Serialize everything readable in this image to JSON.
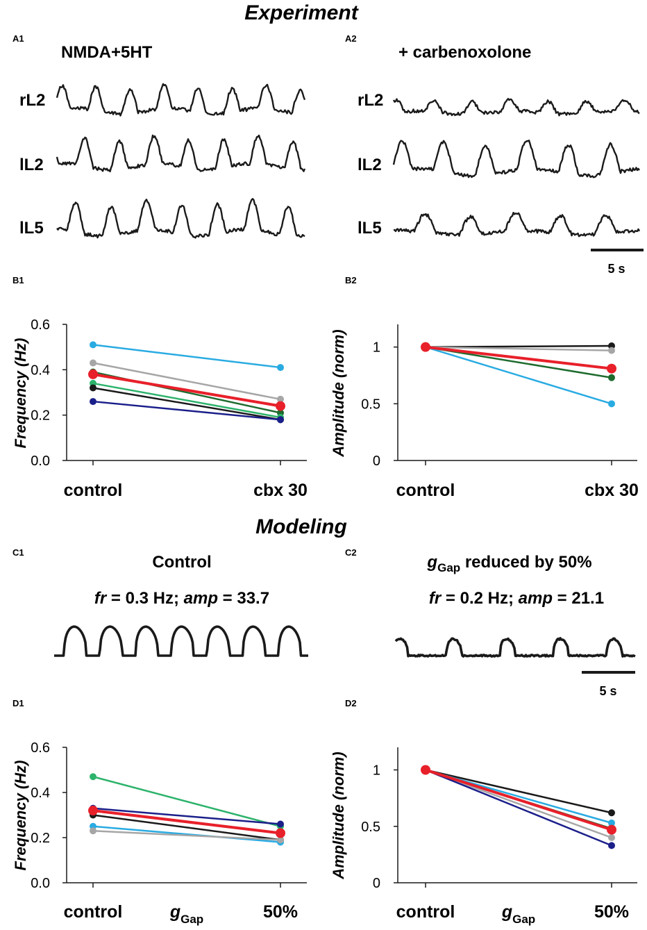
{
  "figure": {
    "experiment_title": "Experiment",
    "modeling_title": "Modeling"
  },
  "panel_a": {
    "a1": {
      "label": "A1",
      "title": "NMDA+5HT"
    },
    "a2": {
      "label": "A2",
      "title": "+ carbenoxolone"
    },
    "trace_labels": [
      "rL2",
      "lL2",
      "lL5"
    ],
    "scale_bar": "5 s"
  },
  "panel_c": {
    "c1": {
      "label": "C1",
      "title": "Control",
      "fr_label": "fr",
      "fr_value": " = 0.3 Hz; ",
      "amp_label": "amp",
      "amp_value": " =  33.7"
    },
    "c2": {
      "label": "C2",
      "title_symbol": "g",
      "title_sub": "Gap",
      "title_rest": " reduced by 50%",
      "fr_label": "fr",
      "fr_value": " = 0.2 Hz; ",
      "amp_label": "amp",
      "amp_value": " =  21.1"
    },
    "scale_bar": "5 s"
  },
  "colors": {
    "cyan": "#29abe2",
    "gray": "#a6a6a6",
    "darkgreen": "#1e6b2e",
    "green": "#2db36b",
    "black": "#1a1a1a",
    "navy": "#1b1f8a",
    "red": "#e8202a"
  },
  "chart_data": [
    {
      "id": "B1",
      "label": "B1",
      "type": "line",
      "categories": [
        "control",
        "cbx 30"
      ],
      "ylabel": "Frequency (Hz)",
      "ylim": [
        0,
        0.6
      ],
      "yticks": [
        0.0,
        0.2,
        0.4,
        0.6
      ],
      "ytick_labels": [
        "0.0",
        "0.2",
        "0.4",
        "0.6"
      ],
      "xlabel_symbol": "",
      "xlabel_sub": "",
      "series": [
        {
          "name": "cyan",
          "values": [
            0.51,
            0.41
          ]
        },
        {
          "name": "gray",
          "values": [
            0.43,
            0.27
          ]
        },
        {
          "name": "darkgreen",
          "values": [
            0.39,
            0.21
          ]
        },
        {
          "name": "green",
          "values": [
            0.34,
            0.19
          ]
        },
        {
          "name": "black",
          "values": [
            0.32,
            0.18
          ]
        },
        {
          "name": "navy",
          "values": [
            0.26,
            0.18
          ]
        },
        {
          "name": "red",
          "values": [
            0.38,
            0.24
          ],
          "mean": true
        }
      ]
    },
    {
      "id": "B2",
      "label": "B2",
      "type": "line",
      "categories": [
        "control",
        "cbx 30"
      ],
      "ylabel": "Amplitude (norm)",
      "ylim": [
        0,
        1.2
      ],
      "yticks": [
        0,
        0.5,
        1
      ],
      "ytick_labels": [
        "0",
        "0.5",
        "1"
      ],
      "xlabel_symbol": "",
      "xlabel_sub": "",
      "series": [
        {
          "name": "black",
          "values": [
            1.0,
            1.01
          ]
        },
        {
          "name": "gray",
          "values": [
            1.0,
            0.97
          ]
        },
        {
          "name": "darkgreen",
          "values": [
            1.0,
            0.73
          ]
        },
        {
          "name": "cyan",
          "values": [
            1.0,
            0.5
          ]
        },
        {
          "name": "red",
          "values": [
            1.0,
            0.81
          ],
          "mean": true
        }
      ]
    },
    {
      "id": "D1",
      "label": "D1",
      "type": "line",
      "categories": [
        "control",
        "50%"
      ],
      "ylabel": "Frequency (Hz)",
      "ylim": [
        0,
        0.6
      ],
      "yticks": [
        0.0,
        0.2,
        0.4,
        0.6
      ],
      "ytick_labels": [
        "0.0",
        "0.2",
        "0.4",
        "0.6"
      ],
      "xlabel_symbol": "g",
      "xlabel_sub": "Gap",
      "series": [
        {
          "name": "green",
          "values": [
            0.47,
            0.25
          ]
        },
        {
          "name": "navy",
          "values": [
            0.33,
            0.26
          ]
        },
        {
          "name": "black",
          "values": [
            0.3,
            0.19
          ]
        },
        {
          "name": "cyan",
          "values": [
            0.25,
            0.18
          ]
        },
        {
          "name": "gray",
          "values": [
            0.23,
            0.19
          ]
        },
        {
          "name": "red",
          "values": [
            0.32,
            0.22
          ],
          "mean": true
        }
      ]
    },
    {
      "id": "D2",
      "label": "D2",
      "type": "line",
      "categories": [
        "control",
        "50%"
      ],
      "ylabel": "Amplitude (norm)",
      "ylim": [
        0,
        1.2
      ],
      "yticks": [
        0,
        0.5,
        1
      ],
      "ytick_labels": [
        "0",
        "0.5",
        "1"
      ],
      "xlabel_symbol": "g",
      "xlabel_sub": "Gap",
      "series": [
        {
          "name": "black",
          "values": [
            1.0,
            0.62
          ]
        },
        {
          "name": "cyan",
          "values": [
            1.0,
            0.53
          ]
        },
        {
          "name": "darkgreen",
          "values": [
            1.0,
            0.48
          ]
        },
        {
          "name": "gray",
          "values": [
            1.0,
            0.4
          ]
        },
        {
          "name": "navy",
          "values": [
            1.0,
            0.33
          ]
        },
        {
          "name": "red",
          "values": [
            1.0,
            0.47
          ],
          "mean": true
        }
      ]
    }
  ]
}
